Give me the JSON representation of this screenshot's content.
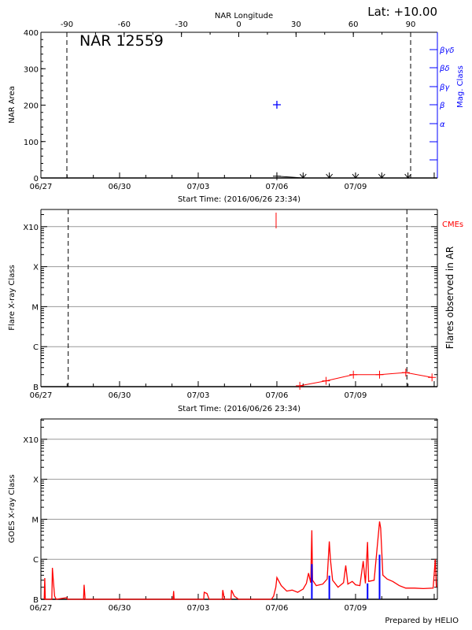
{
  "chart_data": [
    {
      "type": "scatter",
      "title": "NAR 12559",
      "corner_label": "Lat: +10.00",
      "top_axis_label": "NAR Longitude",
      "top_ticks": [
        "-90",
        "-60",
        "-30",
        "0",
        "30",
        "60",
        "90"
      ],
      "top_tick_values": [
        -90,
        -60,
        -30,
        0,
        30,
        60,
        90
      ],
      "xlabel": "Start Time: (2016/06/26 23:34)",
      "x_ticks": [
        "06/27",
        "06/30",
        "07/03",
        "07/06",
        "07/09"
      ],
      "ylabel": "NAR Area",
      "ylim": [
        0,
        400
      ],
      "y_ticks": [
        "0",
        "100",
        "200",
        "300",
        "400"
      ],
      "y2label": "Mag. Class",
      "y2_ticks": [
        "α",
        "β",
        "βγ",
        "βδ",
        "βγδ"
      ],
      "limb_longitudes": [
        -90,
        90
      ],
      "area_series": [
        {
          "time": "07/06 00:00",
          "area": 5
        },
        {
          "time": "07/07 00:00",
          "area": 0
        },
        {
          "time": "07/08 00:00",
          "area": 0
        },
        {
          "time": "07/09 00:00",
          "area": 0
        },
        {
          "time": "07/10 00:00",
          "area": 0
        },
        {
          "time": "07/11 00:00",
          "area": 0
        }
      ],
      "mag_class_points": [
        {
          "time": "07/06 00:00",
          "class": "β"
        }
      ],
      "colors": {
        "area": "#000000",
        "mag_class": "#0000ff"
      }
    },
    {
      "type": "line",
      "xlabel": "Start Time: (2016/06/26 23:34)",
      "x_ticks": [
        "06/27",
        "06/30",
        "07/03",
        "07/06",
        "07/09"
      ],
      "ylabel": "Flare X-ray Class",
      "y_ticks": [
        "B",
        "C",
        "M",
        "X",
        "X10"
      ],
      "y_scale": "log",
      "ylim_wm2": [
        1e-07,
        0.0015
      ],
      "y2label": "Flares observed in AR",
      "cme_label": "CMEs",
      "cme_times": [
        "07/06 00:00"
      ],
      "grid": true,
      "limb_times": [
        "06/28 01:00",
        "07/10 23:00"
      ],
      "series": [
        {
          "points": [
            {
              "time": "07/06 21:00",
              "flux": 1.05e-07
            },
            {
              "time": "07/07 21:00",
              "flux": 1.4e-07
            },
            {
              "time": "07/08 22:00",
              "flux": 2e-07
            },
            {
              "time": "07/09 22:00",
              "flux": 2e-07
            },
            {
              "time": "07/10 22:00",
              "flux": 2.25e-07
            },
            {
              "time": "07/11 22:00",
              "flux": 1.7e-07
            }
          ]
        }
      ],
      "colors": {
        "flares": "#ff0000",
        "cme": "#ff0000"
      }
    },
    {
      "type": "line",
      "x_ticks": [
        "06/27",
        "06/30",
        "07/03",
        "07/06",
        "07/09"
      ],
      "ylabel": "GOES X-ray Class",
      "y_ticks": [
        "B",
        "C",
        "M",
        "X",
        "X10"
      ],
      "y_scale": "log",
      "ylim_wm2": [
        1e-07,
        0.0015
      ],
      "grid": true,
      "footer": "Prepared by HELIO",
      "series": [
        {
          "points": [
            [
              "06/27 03:00",
              1e-07
            ],
            [
              "06/27 03:30",
              3.4e-07
            ],
            [
              "06/27 04:00",
              1e-07
            ],
            [
              "06/27 10:00",
              1e-07
            ],
            [
              "06/27 10:30",
              6.1e-07
            ],
            [
              "06/27 11:30",
              2.6e-07
            ],
            [
              "06/27 12:30",
              1.2e-07
            ],
            [
              "06/27 14:00",
              1e-07
            ],
            [
              "06/27 23:30",
              1.1e-07
            ],
            [
              "06/28 00:30",
              1e-07
            ],
            [
              "06/28 15:00",
              1e-07
            ],
            [
              "06/28 15:30",
              2.3e-07
            ],
            [
              "06/28 16:30",
              1e-07
            ],
            [
              "07/02 01:00",
              1e-07
            ],
            [
              "07/02 01:30",
              1.6e-07
            ],
            [
              "07/02 02:00",
              1e-07
            ],
            [
              "07/03 05:00",
              1e-07
            ],
            [
              "07/03 05:30",
              1.5e-07
            ],
            [
              "07/03 08:00",
              1.4e-07
            ],
            [
              "07/03 10:00",
              1e-07
            ],
            [
              "07/03 22:00",
              1e-07
            ],
            [
              "07/03 22:30",
              1.7e-07
            ],
            [
              "07/04 00:00",
              1e-07
            ],
            [
              "07/04 06:00",
              1e-07
            ],
            [
              "07/04 06:30",
              1.7e-07
            ],
            [
              "07/04 09:00",
              1.2e-07
            ],
            [
              "07/04 13:00",
              1e-07
            ],
            [
              "07/05 19:00",
              1e-07
            ],
            [
              "07/05 21:00",
              1.2e-07
            ],
            [
              "07/05 23:00",
              2e-07
            ],
            [
              "07/06 00:00",
              3.5e-07
            ],
            [
              "07/06 04:00",
              2.2e-07
            ],
            [
              "07/06 09:00",
              1.6e-07
            ],
            [
              "07/06 14:00",
              1.7e-07
            ],
            [
              "07/06 19:00",
              1.5e-07
            ],
            [
              "07/07 00:00",
              1.8e-07
            ],
            [
              "07/07 03:00",
              2.5e-07
            ],
            [
              "07/07 05:00",
              4.5e-07
            ],
            [
              "07/07 07:00",
              2.6e-07
            ],
            [
              "07/07 08:00",
              5.3e-06
            ],
            [
              "07/07 08:40",
              3e-07
            ],
            [
              "07/07 12:00",
              2.2e-07
            ],
            [
              "07/07 18:00",
              2.4e-07
            ],
            [
              "07/07 22:00",
              3.2e-07
            ],
            [
              "07/08 00:00",
              2.8e-06
            ],
            [
              "07/08 01:00",
              1e-06
            ],
            [
              "07/08 03:00",
              3e-07
            ],
            [
              "07/08 08:00",
              2e-07
            ],
            [
              "07/08 13:00",
              2.6e-07
            ],
            [
              "07/08 15:00",
              7e-07
            ],
            [
              "07/08 17:00",
              2.4e-07
            ],
            [
              "07/08 21:00",
              2.8e-07
            ],
            [
              "07/09 00:00",
              2.3e-07
            ],
            [
              "07/09 04:00",
              2.2e-07
            ],
            [
              "07/09 07:00",
              9e-07
            ],
            [
              "07/09 09:00",
              2.5e-07
            ],
            [
              "07/09 11:00",
              2.7e-06
            ],
            [
              "07/09 12:00",
              2.8e-07
            ],
            [
              "07/09 17:00",
              3e-07
            ],
            [
              "07/09 22:00",
              8.8e-06
            ],
            [
              "07/09 23:00",
              6e-06
            ],
            [
              "07/10 01:00",
              4e-07
            ],
            [
              "07/10 05:00",
              3.2e-07
            ],
            [
              "07/10 10:00",
              2.8e-07
            ],
            [
              "07/10 16:00",
              2.2e-07
            ],
            [
              "07/10 22:00",
              1.9e-07
            ],
            [
              "07/11 06:00",
              1.9e-07
            ],
            [
              "07/11 14:00",
              1.85e-07
            ],
            [
              "07/11 23:00",
              1.9e-07
            ],
            [
              "07/12 01:00",
              1e-06
            ],
            [
              "07/12 02:00",
              2e-07
            ]
          ]
        },
        {
          "points": [
            [
              "07/07 08:00",
              7.6e-07
            ],
            [
              "07/08 00:00",
              3.9e-07
            ],
            [
              "07/09 11:00",
              2.5e-07
            ],
            [
              "07/09 22:00",
              1.3e-06
            ]
          ]
        }
      ],
      "colors": {
        "goes_flux": "#ff0000",
        "ar_flares": "#0000ff"
      }
    }
  ]
}
